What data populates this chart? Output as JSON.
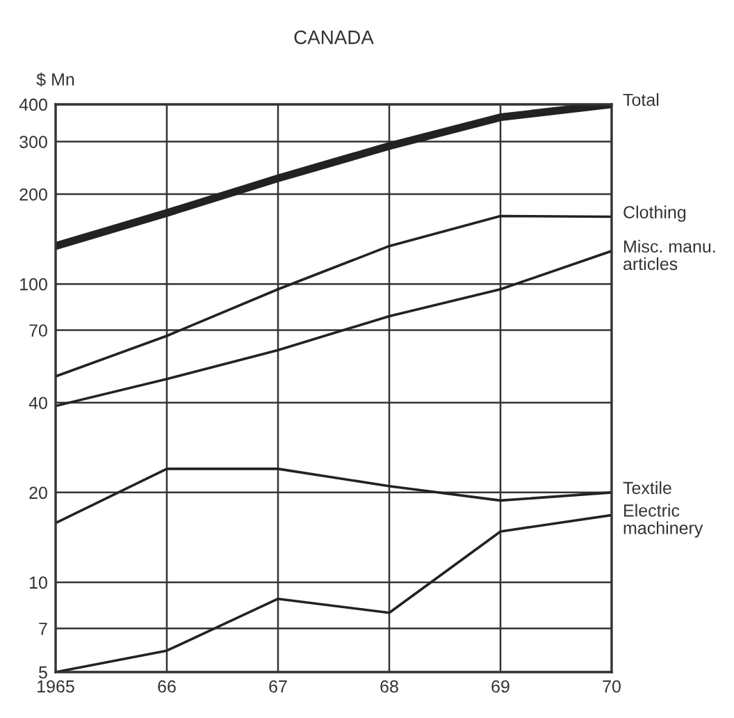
{
  "chart_data": {
    "type": "line",
    "title": "CANADA",
    "ylabel": "$ Mn",
    "x": [
      1965,
      1966,
      1967,
      1968,
      1969,
      1970
    ],
    "series": [
      {
        "name": "Total",
        "color": "#222222",
        "values": [
          134,
          173,
          226,
          290,
          362,
          400
        ]
      },
      {
        "name": "Clothing",
        "color": "#222222",
        "values": [
          49,
          67,
          96,
          134,
          169,
          168
        ]
      },
      {
        "name": "Misc. manu.\narticles",
        "color": "#222222",
        "values": [
          39,
          48,
          60,
          78,
          96,
          129
        ]
      },
      {
        "name": "Textile",
        "color": "#222222",
        "values": [
          15.8,
          24,
          24,
          21,
          18.8,
          20
        ]
      },
      {
        "name": "Electric\nmachinery",
        "color": "#222222",
        "values": [
          5,
          5.9,
          8.8,
          7.9,
          14.8,
          16.8
        ]
      }
    ],
    "log": "y",
    "ylim": [
      5,
      400
    ],
    "yticks": [
      5,
      7,
      10,
      20,
      40,
      70,
      100,
      200,
      300,
      400
    ],
    "xlim": [
      1965,
      1970
    ],
    "xticks": [
      1965,
      {
        "value": 1966,
        "label": "66"
      },
      {
        "value": 1967,
        "label": "67"
      },
      {
        "value": 1968,
        "label": "68"
      },
      {
        "value": 1969,
        "label": "69"
      },
      {
        "value": 1970,
        "label": "70"
      }
    ],
    "grid": true,
    "legend": false,
    "marker": "none",
    "line_style": "solid"
  }
}
